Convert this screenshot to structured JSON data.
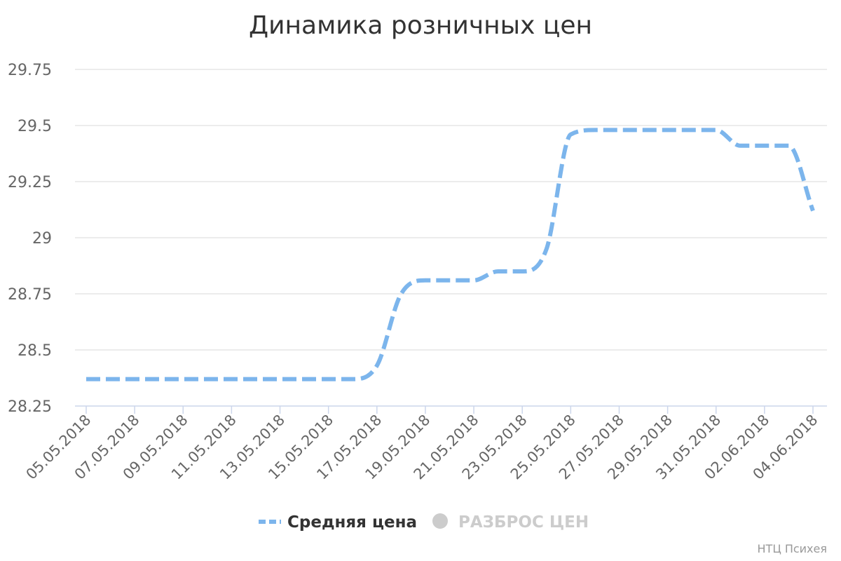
{
  "chart_data": {
    "type": "line",
    "title": "Динамика розничных цен",
    "xlabel": "",
    "ylabel": "",
    "ylim": [
      28.25,
      29.75
    ],
    "yticks": [
      "28.25",
      "28.5",
      "28.75",
      "29",
      "29.25",
      "29.5",
      "29.75"
    ],
    "y_tick_values": [
      28.25,
      28.5,
      28.75,
      29,
      29.25,
      29.5,
      29.75
    ],
    "x_tick_labels": [
      "05.05.2018",
      "07.05.2018",
      "09.05.2018",
      "11.05.2018",
      "13.05.2018",
      "15.05.2018",
      "17.05.2018",
      "19.05.2018",
      "21.05.2018",
      "23.05.2018",
      "25.05.2018",
      "27.05.2018",
      "29.05.2018",
      "31.05.2018",
      "02.06.2018",
      "04.06.2018"
    ],
    "grid": true,
    "legend_position": "bottom",
    "series": [
      {
        "name": "Средняя цена",
        "color": "#7cb5ec",
        "line_style": "dashed",
        "visible": true,
        "points": [
          {
            "x": "05.05.2018",
            "y": 28.37
          },
          {
            "x": "16.05.2018",
            "y": 28.37
          },
          {
            "x": "17.05.2018",
            "y": 28.43
          },
          {
            "x": "18.05.2018",
            "y": 28.75
          },
          {
            "x": "19.05.2018",
            "y": 28.81
          },
          {
            "x": "21.05.2018",
            "y": 28.81
          },
          {
            "x": "22.05.2018",
            "y": 28.85
          },
          {
            "x": "23.05.2018",
            "y": 28.85
          },
          {
            "x": "24.05.2018",
            "y": 28.95
          },
          {
            "x": "25.05.2018",
            "y": 29.46
          },
          {
            "x": "26.05.2018",
            "y": 29.48
          },
          {
            "x": "31.05.2018",
            "y": 29.48
          },
          {
            "x": "01.06.2018",
            "y": 29.41
          },
          {
            "x": "03.06.2018",
            "y": 29.41
          },
          {
            "x": "04.06.2018",
            "y": 29.12
          }
        ]
      },
      {
        "name": "РАЗБРОС ЦЕН",
        "color": "#cccccc",
        "visible": false
      }
    ]
  },
  "credits": "НТЦ Психея"
}
